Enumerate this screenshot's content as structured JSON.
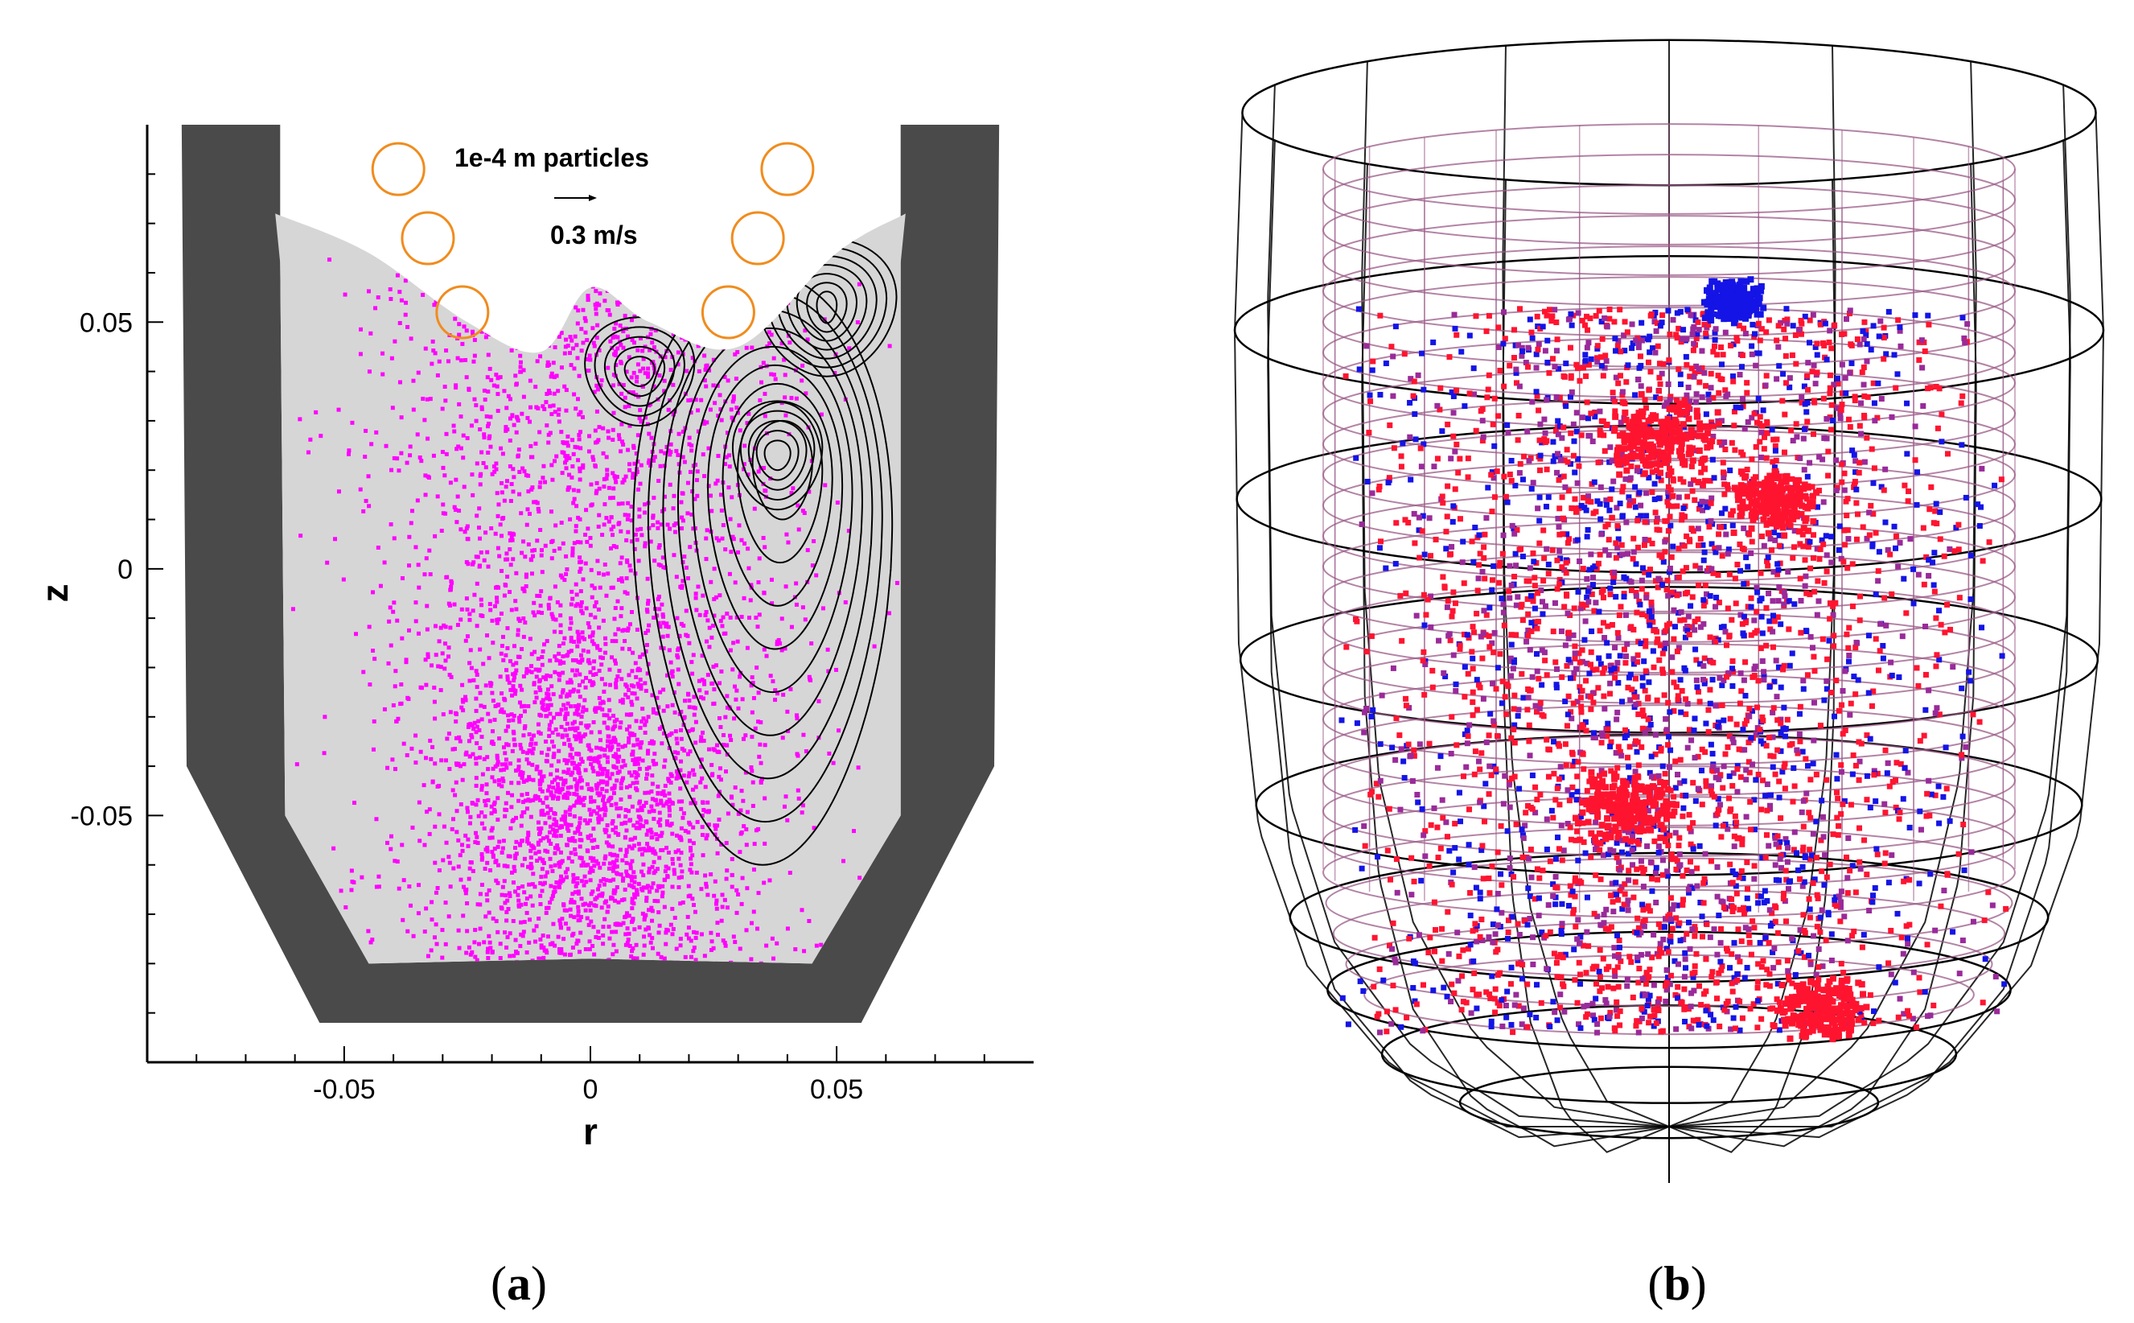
{
  "panel_a": {
    "caption": {
      "open": "(",
      "letter": "a",
      "close": ")"
    },
    "annotation": "1e-4 m particles",
    "velocity_scale": "0.3 m/s",
    "colors": {
      "wall": "#4a4a4a",
      "melt": "#d6d6d6",
      "particles": "#ff00ff",
      "streamlines": "#000000",
      "coils": "#f08c1e"
    },
    "icons": [
      "velocity-arrow-icon",
      "induction-coil-icon"
    ],
    "chart_data": {
      "type": "scatter",
      "xlabel": "r",
      "ylabel": "z",
      "xlim": [
        -0.09,
        0.09
      ],
      "ylim": [
        -0.1,
        0.09
      ],
      "x_ticks": [
        {
          "value": -0.05,
          "label": "-0.05"
        },
        {
          "value": 0,
          "label": "0"
        },
        {
          "value": 0.05,
          "label": "0.05"
        }
      ],
      "y_ticks": [
        {
          "value": -0.05,
          "label": "-0.05"
        },
        {
          "value": 0,
          "label": "0"
        },
        {
          "value": 0.05,
          "label": "0.05"
        }
      ],
      "coils": [
        {
          "r": -0.039,
          "z": 0.081
        },
        {
          "r": -0.033,
          "z": 0.067
        },
        {
          "r": -0.026,
          "z": 0.052
        },
        {
          "r": 0.04,
          "z": 0.081
        },
        {
          "r": 0.034,
          "z": 0.067
        },
        {
          "r": 0.028,
          "z": 0.052
        }
      ],
      "melt_free_surface": [
        {
          "r": -0.064,
          "z": 0.072
        },
        {
          "r": -0.045,
          "z": 0.064
        },
        {
          "r": -0.025,
          "z": 0.05
        },
        {
          "r": -0.01,
          "z": 0.044
        },
        {
          "r": 0,
          "z": 0.057
        },
        {
          "r": 0.012,
          "z": 0.05
        },
        {
          "r": 0.03,
          "z": 0.045
        },
        {
          "r": 0.05,
          "z": 0.064
        },
        {
          "r": 0.064,
          "z": 0.072
        }
      ],
      "crucible_inner_wall": [
        {
          "r": -0.063,
          "z": 0.062
        },
        {
          "r": -0.062,
          "z": -0.05
        },
        {
          "r": -0.045,
          "z": -0.08
        },
        {
          "r": 0,
          "z": -0.079
        },
        {
          "r": 0.045,
          "z": -0.08
        },
        {
          "r": 0.063,
          "z": -0.05
        },
        {
          "r": 0.063,
          "z": 0.062
        }
      ],
      "crucible_outer_wall": [
        {
          "r": -0.083,
          "z": 0.09
        },
        {
          "r": -0.082,
          "z": -0.04
        },
        {
          "r": -0.055,
          "z": -0.092
        },
        {
          "r": 0.055,
          "z": -0.092
        },
        {
          "r": 0.082,
          "z": -0.04
        },
        {
          "r": 0.083,
          "z": 0.09
        }
      ],
      "vortices": [
        {
          "r": 0.01,
          "z": 0.04
        },
        {
          "r": 0.048,
          "z": 0.053
        },
        {
          "r": 0.038,
          "z": 0.023
        }
      ]
    }
  },
  "panel_b": {
    "caption": {
      "open": "(",
      "letter": "b",
      "close": ")"
    },
    "colors": {
      "outer_mesh": "#000000",
      "inner_mesh": "#9a5a86",
      "particles_red": "#ff1430",
      "particles_blue": "#1414e6",
      "particles_purple": "#9a2a9a"
    },
    "icons": [
      "crucible-wireframe-icon"
    ]
  }
}
